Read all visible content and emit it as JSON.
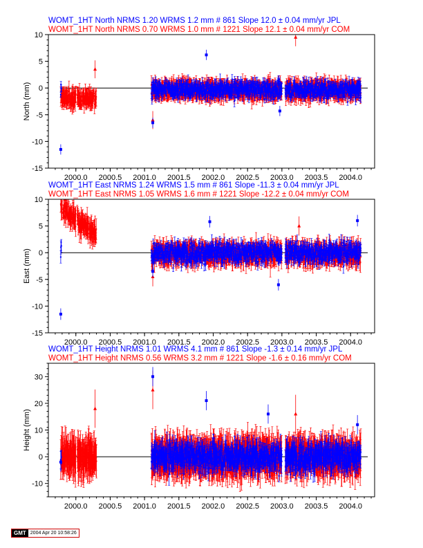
{
  "colors": {
    "jpl": "#0000ff",
    "com": "#ff0000",
    "axis": "#000000",
    "zero_line": "#000000"
  },
  "footer": {
    "logo": "GMT",
    "timestamp": "2004 Apr 20 10:58:26"
  },
  "chart_data": [
    {
      "type": "scatter",
      "component": "North",
      "ylabel": "North (mm)",
      "xlim": [
        1999.6,
        2004.35
      ],
      "ylim": [
        -15,
        10
      ],
      "yticks": [
        -15,
        -10,
        -5,
        0,
        5,
        10
      ],
      "xticks": [
        "2000.0",
        "2000.5",
        "2001.0",
        "2001.5",
        "2002.0",
        "2002.5",
        "2003.0",
        "2003.5",
        "2004.0"
      ],
      "zero_line": true,
      "series": [
        {
          "name": "JPL",
          "header": "WOMT_1HT North NRMS 1.20 WRMS  1.2 mm # 861 Slope   12.0 ±  0.04 mm/yr JPL",
          "count": 861,
          "nrms": 1.2,
          "wrms_mm": 1.2,
          "slope_mm_yr": 12.0,
          "slope_err": 0.04,
          "segments": [
            [
              1999.78,
              1999.79
            ],
            [
              2001.1,
              2003.0
            ],
            [
              2003.05,
              2004.15
            ]
          ],
          "mean_mm": -0.3,
          "scatter_mm": 1.3,
          "sigma_mm": 0.8,
          "outliers": [
            [
              1999.78,
              -11.5
            ],
            [
              2001.9,
              6.2
            ],
            [
              2001.12,
              -6.5
            ],
            [
              2002.97,
              -4.3
            ]
          ]
        },
        {
          "name": "COM",
          "header": "WOMT_1HT North NRMS 0.70 WRMS  1.0 mm # 1221 Slope   12.1 ±  0.04 mm/yr COM",
          "count": 1221,
          "nrms": 0.7,
          "wrms_mm": 1.0,
          "slope_mm_yr": 12.1,
          "slope_err": 0.04,
          "segments": [
            [
              1999.78,
              2000.0
            ],
            [
              2000.02,
              2000.3
            ],
            [
              2001.1,
              2003.0
            ],
            [
              2003.05,
              2004.15
            ]
          ],
          "early_mean_mm": -2.0,
          "mean_mm": -0.4,
          "scatter_mm": 1.0,
          "sigma_mm": 1.4,
          "outliers": [
            [
              2000.28,
              3.5
            ],
            [
              2001.12,
              -6.0
            ],
            [
              2003.2,
              9.5
            ]
          ]
        }
      ]
    },
    {
      "type": "scatter",
      "component": "East",
      "ylabel": "East (mm)",
      "xlim": [
        1999.6,
        2004.35
      ],
      "ylim": [
        -15,
        10
      ],
      "yticks": [
        -15,
        -10,
        -5,
        0,
        5,
        10
      ],
      "xticks": [
        "2000.0",
        "2000.5",
        "2001.0",
        "2001.5",
        "2002.0",
        "2002.5",
        "2003.0",
        "2003.5",
        "2004.0"
      ],
      "zero_line": true,
      "series": [
        {
          "name": "JPL",
          "header": "WOMT_1HT East NRMS 1.24 WRMS  1.5 mm # 861 Slope  -11.3 ±  0.04 mm/yr JPL",
          "count": 861,
          "nrms": 1.24,
          "wrms_mm": 1.5,
          "slope_mm_yr": -11.3,
          "slope_err": 0.04,
          "segments": [
            [
              1999.78,
              1999.79
            ],
            [
              2001.1,
              2003.0
            ],
            [
              2003.05,
              2004.15
            ]
          ],
          "mean_mm": 0.0,
          "scatter_mm": 1.6,
          "sigma_mm": 0.9,
          "outliers": [
            [
              1999.78,
              -11.5
            ],
            [
              2001.12,
              -3.5
            ],
            [
              2001.95,
              5.8
            ],
            [
              2002.95,
              -6.0
            ],
            [
              2004.1,
              6.0
            ]
          ]
        },
        {
          "name": "COM",
          "header": "WOMT_1HT East NRMS 1.05 WRMS  1.6 mm # 1221 Slope  -12.2 ±  0.04 mm/yr COM",
          "count": 1221,
          "nrms": 1.05,
          "wrms_mm": 1.6,
          "slope_mm_yr": -12.2,
          "slope_err": 0.04,
          "segments": [
            [
              1999.78,
              2000.0
            ],
            [
              2000.02,
              2000.3
            ],
            [
              2001.1,
              2003.0
            ],
            [
              2003.05,
              2004.15
            ]
          ],
          "early_start_mm": 9.0,
          "early_end_mm": 3.0,
          "mean_mm": -0.2,
          "scatter_mm": 1.4,
          "sigma_mm": 1.5,
          "outliers": [
            [
              2001.12,
              -4.5
            ],
            [
              2003.25,
              5.0
            ]
          ]
        }
      ]
    },
    {
      "type": "scatter",
      "component": "Height",
      "ylabel": "Height (mm)",
      "xlim": [
        1999.6,
        2004.35
      ],
      "ylim": [
        -15,
        35
      ],
      "yticks": [
        -10,
        0,
        10,
        20,
        30
      ],
      "xticks": [
        "2000.0",
        "2000.5",
        "2001.0",
        "2001.5",
        "2002.0",
        "2002.5",
        "2003.0",
        "2003.5",
        "2004.0"
      ],
      "zero_line": true,
      "series": [
        {
          "name": "JPL",
          "header": "WOMT_1HT Height NRMS 1.01 WRMS  4.1 mm # 861 Slope   -1.3 ±  0.14 mm/yr JPL",
          "count": 861,
          "nrms": 1.01,
          "wrms_mm": 4.1,
          "slope_mm_yr": -1.3,
          "slope_err": 0.14,
          "segments": [
            [
              1999.78,
              1999.79
            ],
            [
              2001.1,
              2003.0
            ],
            [
              2003.05,
              2004.15
            ]
          ],
          "mean_mm": 0.0,
          "scatter_mm": 4.0,
          "sigma_mm": 3.0,
          "outliers": [
            [
              1999.78,
              -2.0
            ],
            [
              2001.12,
              30.0
            ],
            [
              2001.9,
              21.0
            ],
            [
              2002.8,
              16.0
            ],
            [
              2004.1,
              12.0
            ]
          ]
        },
        {
          "name": "COM",
          "header": "WOMT_1HT Height NRMS 0.56 WRMS  3.2 mm # 1221 Slope   -1.6 ±  0.16 mm/yr COM",
          "count": 1221,
          "nrms": 0.56,
          "wrms_mm": 3.2,
          "slope_mm_yr": -1.6,
          "slope_err": 0.16,
          "segments": [
            [
              1999.78,
              2000.0
            ],
            [
              2000.02,
              2000.3
            ],
            [
              2001.1,
              2003.0
            ],
            [
              2003.05,
              2004.15
            ]
          ],
          "mean_mm": 0.0,
          "scatter_mm": 3.5,
          "sigma_mm": 6.0,
          "outliers": [
            [
              2001.12,
              25.0
            ],
            [
              2000.28,
              18.0
            ],
            [
              2003.2,
              16.0
            ]
          ]
        }
      ]
    }
  ]
}
